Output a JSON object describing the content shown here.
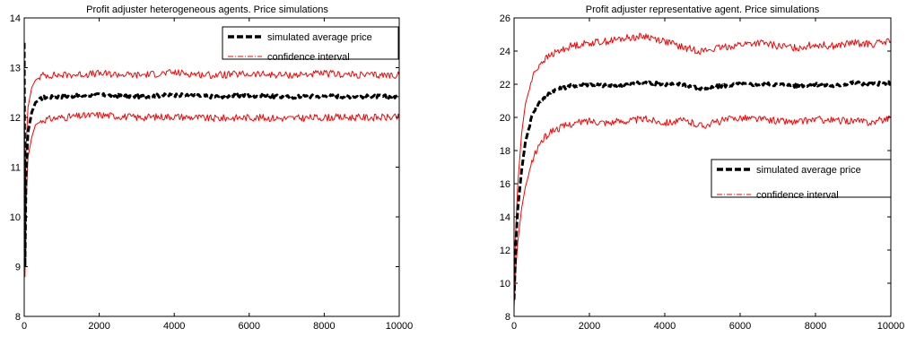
{
  "chart_data": [
    {
      "type": "line",
      "title": "Profit adjuster heterogeneous agents. Price simulations",
      "xlabel": "",
      "ylabel": "",
      "xlim": [
        0,
        10000
      ],
      "ylim": [
        8,
        14
      ],
      "xticks": [
        "0",
        "2000",
        "4000",
        "6000",
        "8000",
        "10000"
      ],
      "yticks": [
        "8",
        "9",
        "10",
        "11",
        "12",
        "13",
        "14"
      ],
      "grid": false,
      "legend_position": "top-right",
      "series": [
        {
          "name": "simulated average price",
          "style": "dashed",
          "color": "#000000",
          "x": [
            0,
            20,
            50,
            100,
            200,
            300,
            500,
            1000,
            2000,
            3000,
            4000,
            5000,
            6000,
            7000,
            8000,
            9000,
            10000
          ],
          "y": [
            13.5,
            9.0,
            10.9,
            11.7,
            12.1,
            12.3,
            12.4,
            12.42,
            12.45,
            12.42,
            12.45,
            12.42,
            12.44,
            12.41,
            12.43,
            12.42,
            12.42
          ]
        },
        {
          "name": "confidence interval",
          "style": "dashdot",
          "color": "#ff0000",
          "x": [
            0,
            20,
            50,
            100,
            200,
            300,
            500,
            1000,
            2000,
            3000,
            4000,
            5000,
            6000,
            7000,
            8000,
            9000,
            10000
          ],
          "y": [
            13.3,
            9.6,
            11.4,
            12.2,
            12.6,
            12.75,
            12.85,
            12.85,
            12.88,
            12.85,
            12.9,
            12.85,
            12.87,
            12.85,
            12.88,
            12.85,
            12.85
          ]
        },
        {
          "name": "",
          "style": "dashdot",
          "color": "#ff0000",
          "x": [
            0,
            20,
            50,
            100,
            200,
            300,
            500,
            1000,
            2000,
            3000,
            4000,
            5000,
            6000,
            7000,
            8000,
            9000,
            10000
          ],
          "y": [
            13.0,
            8.8,
            10.3,
            11.2,
            11.6,
            11.85,
            11.95,
            12.0,
            12.05,
            12.0,
            12.02,
            11.98,
            12.0,
            11.98,
            12.0,
            12.0,
            12.0
          ]
        }
      ]
    },
    {
      "type": "line",
      "title": "Profit adjuster representative agent. Price simulations",
      "xlabel": "",
      "ylabel": "",
      "xlim": [
        0,
        10000
      ],
      "ylim": [
        8,
        26
      ],
      "xticks": [
        "0",
        "2000",
        "4000",
        "6000",
        "8000",
        "10000"
      ],
      "yticks": [
        "8",
        "10",
        "12",
        "14",
        "16",
        "18",
        "20",
        "22",
        "24",
        "26"
      ],
      "grid": false,
      "legend_position": "center-right",
      "series": [
        {
          "name": "simulated average price",
          "style": "dashed",
          "color": "#000000",
          "x": [
            0,
            50,
            100,
            200,
            300,
            500,
            700,
            1000,
            1500,
            2000,
            2500,
            3000,
            3500,
            4000,
            4500,
            5000,
            5500,
            6000,
            6500,
            7000,
            7500,
            8000,
            8500,
            9000,
            9500,
            10000
          ],
          "y": [
            9.0,
            12.5,
            14.5,
            16.8,
            18.5,
            20.3,
            21.0,
            21.6,
            21.9,
            22.0,
            21.9,
            22.0,
            22.1,
            22.0,
            22.0,
            21.7,
            21.9,
            22.0,
            22.0,
            22.0,
            21.9,
            22.0,
            21.9,
            22.1,
            22.0,
            22.1
          ]
        },
        {
          "name": "confidence interval",
          "style": "dashdot",
          "color": "#ff0000",
          "x": [
            0,
            50,
            100,
            200,
            300,
            500,
            700,
            1000,
            1500,
            2000,
            2500,
            3000,
            3500,
            4000,
            4500,
            5000,
            5500,
            6000,
            6500,
            7000,
            7500,
            8000,
            8500,
            9000,
            9500,
            10000
          ],
          "y": [
            9.5,
            13.5,
            16.0,
            19.0,
            20.8,
            22.5,
            23.3,
            23.8,
            24.3,
            24.5,
            24.6,
            24.8,
            24.9,
            24.6,
            24.2,
            24.0,
            24.2,
            24.4,
            24.5,
            24.3,
            24.2,
            24.4,
            24.3,
            24.5,
            24.4,
            24.6
          ]
        },
        {
          "name": "",
          "style": "dashdot",
          "color": "#ff0000",
          "x": [
            0,
            50,
            100,
            200,
            300,
            500,
            700,
            1000,
            1500,
            2000,
            2500,
            3000,
            3500,
            4000,
            4500,
            5000,
            5500,
            6000,
            6500,
            7000,
            7500,
            8000,
            8500,
            9000,
            9500,
            10000
          ],
          "y": [
            8.5,
            11.0,
            12.5,
            14.5,
            15.8,
            17.5,
            18.5,
            19.2,
            19.6,
            19.8,
            19.7,
            19.8,
            19.9,
            19.7,
            19.8,
            19.5,
            19.8,
            20.0,
            19.9,
            19.8,
            19.7,
            19.9,
            19.8,
            19.8,
            19.7,
            20.0
          ]
        }
      ]
    }
  ]
}
